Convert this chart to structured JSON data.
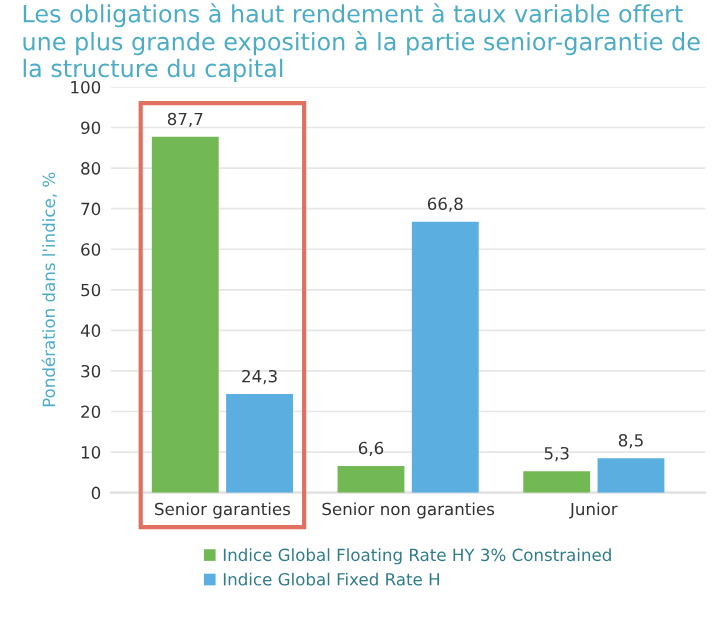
{
  "chart_data": {
    "type": "bar",
    "title": "Les obligations à haut rendement à taux variable offert une plus grande exposition à la partie senior-garantie de la structure du capital",
    "ylabel": "Pondération dans l'indice, %",
    "categories": [
      "Senior garanties",
      "Senior non garanties",
      "Junior"
    ],
    "series": [
      {
        "name": "Indice Global Floating Rate HY 3% Constrained",
        "color": "#72b955",
        "values": [
          87.7,
          6.6,
          5.3
        ],
        "value_labels": [
          "87,7",
          "6,6",
          "5,3"
        ]
      },
      {
        "name": "Indice Global Fixed Rate H",
        "color": "#5aafe0",
        "values": [
          24.3,
          66.8,
          8.5
        ],
        "value_labels": [
          "24,3",
          "66,8",
          "8,5"
        ]
      }
    ],
    "ylim": [
      0,
      100
    ],
    "yticks": [
      0,
      10,
      20,
      30,
      40,
      50,
      60,
      70,
      80,
      90,
      100
    ],
    "grid": "y",
    "legend": "bottom"
  }
}
